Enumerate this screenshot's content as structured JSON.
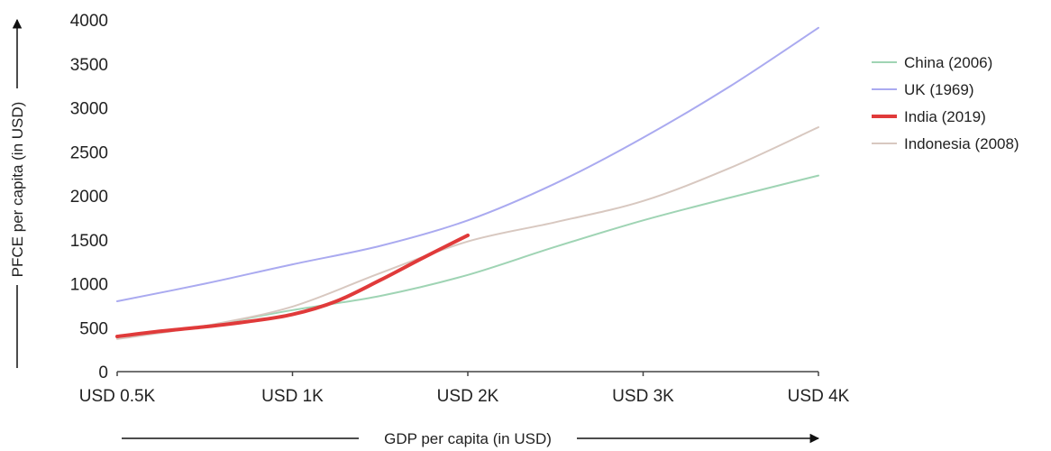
{
  "chart_data": {
    "type": "line",
    "title": "",
    "xlabel": "GDP per capita (in USD)",
    "ylabel": "PFCE per capita (in USD)",
    "x_ticks": [
      "USD 0.5K",
      "USD 1K",
      "USD 2K",
      "USD 3K",
      "USD 4K"
    ],
    "y_ticks": [
      "0",
      "500",
      "1000",
      "1500",
      "2000",
      "2500",
      "3000",
      "3500",
      "4000"
    ],
    "ylim": [
      0,
      4000
    ],
    "grid": false,
    "legend_position": "right",
    "series": [
      {
        "name": "China (2006)",
        "color": "#9fd4b4",
        "x": [
          0,
          0.5,
          1,
          1.5,
          2,
          2.5,
          3,
          3.5,
          4
        ],
        "y": [
          380,
          520,
          700,
          860,
          1100,
          1420,
          1720,
          1980,
          2230
        ]
      },
      {
        "name": "UK (1969)",
        "color": "#aaaaf0",
        "x": [
          0,
          0.5,
          1,
          1.5,
          2,
          2.5,
          3,
          3.5,
          4
        ],
        "y": [
          800,
          1000,
          1220,
          1430,
          1720,
          2140,
          2660,
          3250,
          3910
        ]
      },
      {
        "name": "India (2019)",
        "color": "#e03a3a",
        "x": [
          0,
          0.25,
          0.5,
          0.75,
          1,
          1.25,
          1.5,
          1.75,
          2.0
        ],
        "y": [
          400,
          460,
          510,
          570,
          650,
          800,
          1040,
          1300,
          1550
        ]
      },
      {
        "name": "Indonesia (2008)",
        "color": "#d8c8c0",
        "x": [
          0,
          0.5,
          1,
          1.5,
          2,
          2.5,
          3,
          3.5,
          4
        ],
        "y": [
          370,
          520,
          740,
          1120,
          1480,
          1700,
          1940,
          2320,
          2780
        ]
      }
    ]
  }
}
